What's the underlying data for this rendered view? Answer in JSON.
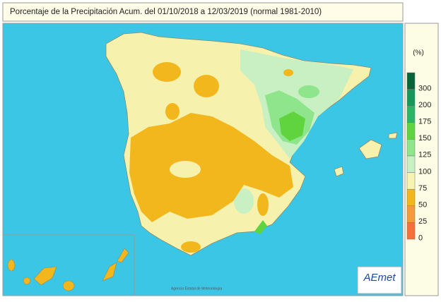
{
  "header": {
    "title": "Porcentaje de la Precipitación Acum. del 01/10/2018 a  12/03/2019  (normal 1981-2010)"
  },
  "legend": {
    "unit": "(%)",
    "ticks": [
      300,
      200,
      175,
      150,
      125,
      100,
      75,
      50,
      25,
      0
    ],
    "colors": [
      "#07653a",
      "#17975a",
      "#2db567",
      "#5fd43f",
      "#8ee58c",
      "#c9f0c3",
      "#f7f3b2",
      "#f2b71c",
      "#f59a3a",
      "#f4713a"
    ]
  },
  "logo": {
    "text": "AEmet",
    "caption": "Agencia Estatal de Meteorología"
  }
}
